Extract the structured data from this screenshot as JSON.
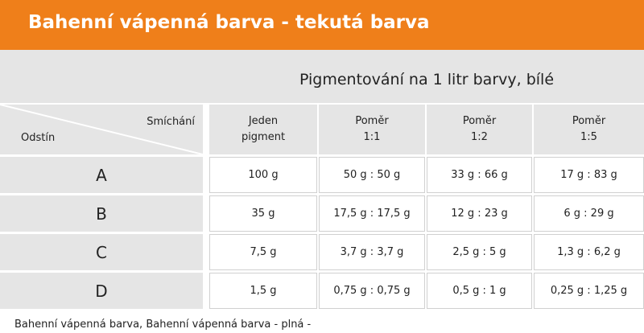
{
  "header": {
    "title": "Bahenní vápenná barva - tekutá barva",
    "subtitle": "Pigmentování na 1 litr barvy, bílé"
  },
  "table": {
    "corner_top": "Smíchání",
    "corner_bottom": "Odstín",
    "columns": [
      [
        "Jeden",
        "pigment"
      ],
      [
        "Poměr",
        "1:1"
      ],
      [
        "Poměr",
        "1:2"
      ],
      [
        "Poměr",
        "1:5"
      ]
    ],
    "rows": [
      {
        "label": "A",
        "cells": [
          "100 g",
          "50 g : 50 g",
          "33 g : 66 g",
          "17 g : 83 g"
        ]
      },
      {
        "label": "B",
        "cells": [
          "35 g",
          "17,5 g : 17,5 g",
          "12 g : 23 g",
          "6 g : 29 g"
        ]
      },
      {
        "label": "C",
        "cells": [
          "7,5 g",
          "3,7 g : 3,7 g",
          "2,5 g : 5 g",
          "1,3 g : 6,2 g"
        ]
      },
      {
        "label": "D",
        "cells": [
          "1,5 g",
          "0,75 g : 0,75 g",
          "0,5 g : 1 g",
          "0,25 g : 1,25 g"
        ]
      }
    ]
  },
  "footer": "Bahenní vápenná barva, Bahenní vápenná barva - plná -"
}
